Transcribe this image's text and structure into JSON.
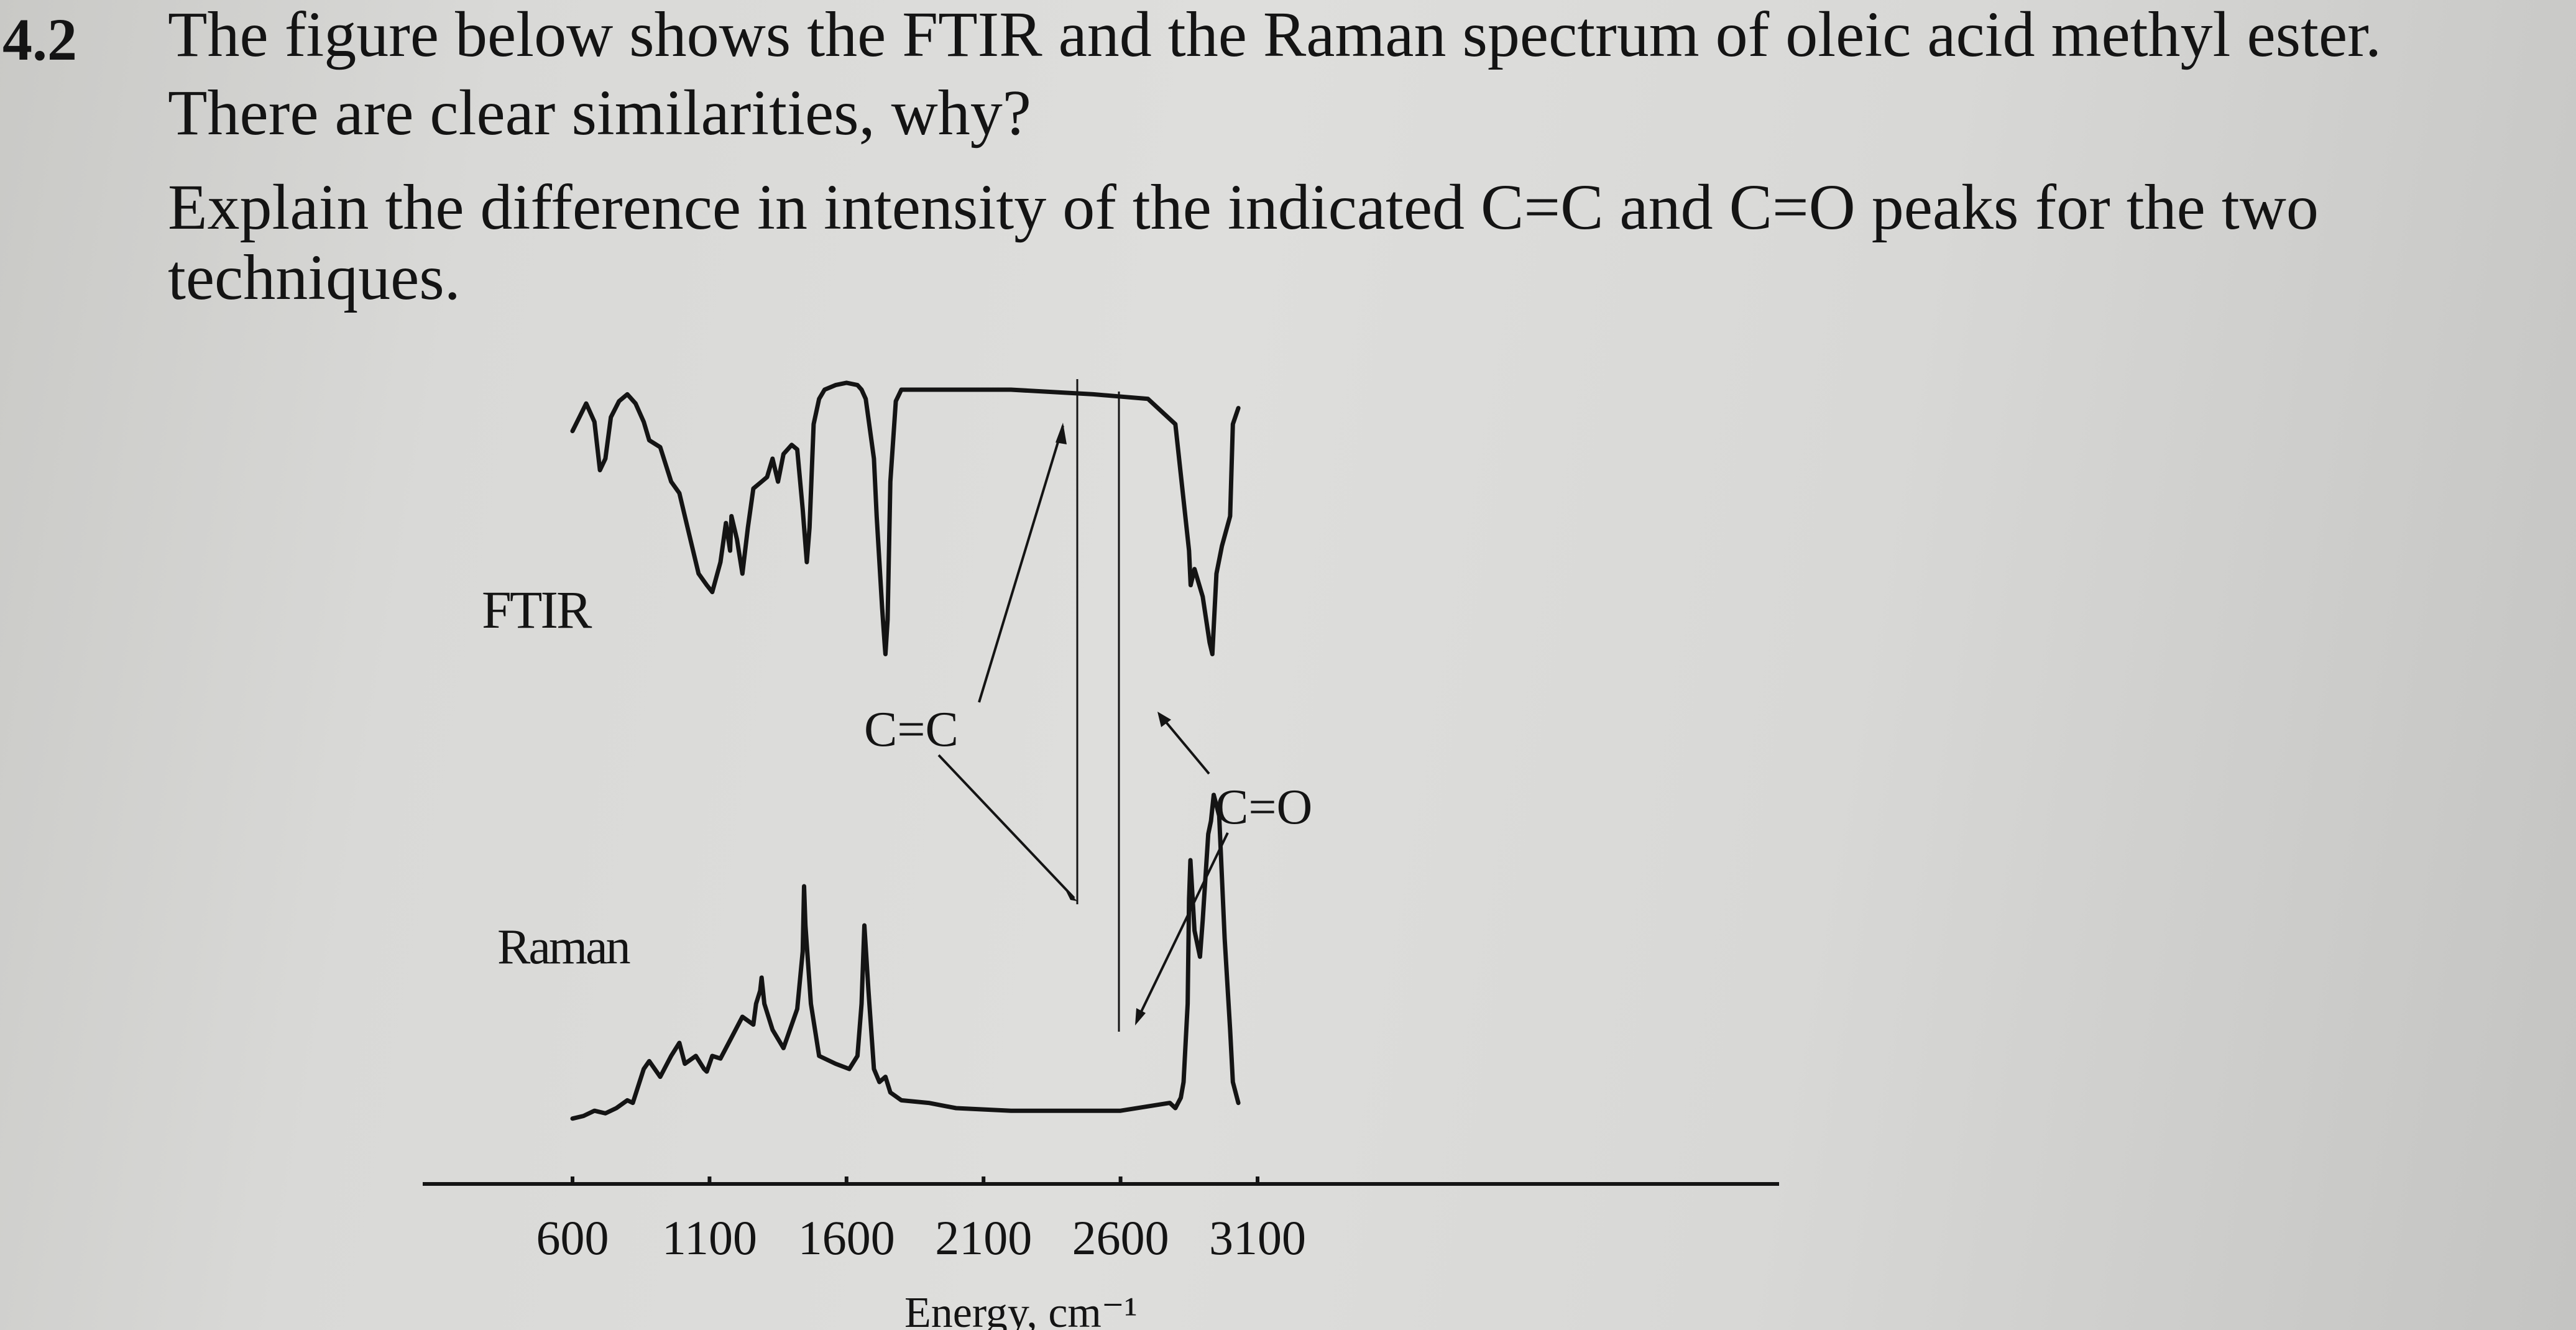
{
  "question": {
    "number": "4.2",
    "lines": [
      "The figure below shows the FTIR and the Raman spectrum of oleic acid methyl ester.",
      "There are clear similarities, why?",
      "Explain the difference in intensity of the indicated C=C and C=O peaks for the two",
      "techniques."
    ]
  },
  "chart_data": {
    "type": "line",
    "x_axis": {
      "label": "Energy, cm⁻¹",
      "range": [
        450,
        3250
      ],
      "ticks": [
        600,
        1100,
        1600,
        2100,
        2600,
        3100
      ],
      "tick_labels": [
        "600",
        "1100",
        "1600",
        "2100",
        "2600",
        "3100"
      ]
    },
    "series": [
      {
        "name": "FTIR",
        "color": "#141414",
        "x": [
          600,
          625,
          650,
          680,
          700,
          720,
          740,
          770,
          800,
          830,
          860,
          880,
          920,
          960,
          990,
          1020,
          1060,
          1090,
          1110,
          1140,
          1160,
          1175,
          1180,
          1200,
          1220,
          1240,
          1260,
          1290,
          1310,
          1330,
          1350,
          1370,
          1400,
          1420,
          1440,
          1455,
          1465,
          1480,
          1500,
          1520,
          1560,
          1600,
          1640,
          1655,
          1670,
          1700,
          1710,
          1730,
          1740,
          1742,
          1750,
          1760,
          1780,
          1800,
          1900,
          2200,
          2500,
          2700,
          2800,
          2850,
          2856,
          2870,
          2900,
          2925,
          2935,
          2950,
          2970,
          3000,
          3005,
          3010,
          3030
        ],
        "y": [
          0.72,
          0.78,
          0.84,
          0.76,
          0.55,
          0.6,
          0.78,
          0.85,
          0.88,
          0.84,
          0.76,
          0.68,
          0.65,
          0.5,
          0.45,
          0.3,
          0.1,
          0.05,
          0.02,
          0.15,
          0.32,
          0.2,
          0.35,
          0.25,
          0.1,
          0.3,
          0.47,
          0.5,
          0.52,
          0.6,
          0.5,
          0.62,
          0.66,
          0.64,
          0.38,
          0.15,
          0.3,
          0.75,
          0.86,
          0.9,
          0.92,
          0.93,
          0.92,
          0.9,
          0.86,
          0.6,
          0.35,
          -0.05,
          -0.22,
          -0.25,
          -0.1,
          0.5,
          0.85,
          0.9,
          0.9,
          0.9,
          0.88,
          0.86,
          0.75,
          0.2,
          0.05,
          0.12,
          0.0,
          -0.2,
          -0.25,
          0.1,
          0.22,
          0.35,
          0.55,
          0.75,
          0.82
        ]
      },
      {
        "name": "Raman",
        "color": "#141414",
        "x": [
          600,
          640,
          680,
          720,
          760,
          800,
          820,
          860,
          880,
          920,
          960,
          990,
          1010,
          1050,
          1080,
          1090,
          1100,
          1110,
          1140,
          1180,
          1220,
          1260,
          1270,
          1285,
          1290,
          1300,
          1330,
          1370,
          1420,
          1440,
          1445,
          1450,
          1470,
          1500,
          1560,
          1610,
          1640,
          1655,
          1665,
          1680,
          1700,
          1720,
          1742,
          1760,
          1800,
          1900,
          2000,
          2200,
          2400,
          2600,
          2780,
          2800,
          2820,
          2830,
          2845,
          2850,
          2855,
          2870,
          2890,
          2900,
          2920,
          2930,
          2940,
          2960,
          2980,
          3000,
          3010,
          3030
        ],
        "y": [
          0.06,
          0.07,
          0.09,
          0.08,
          0.1,
          0.13,
          0.12,
          0.25,
          0.28,
          0.22,
          0.3,
          0.35,
          0.27,
          0.3,
          0.25,
          0.24,
          0.27,
          0.3,
          0.29,
          0.37,
          0.45,
          0.42,
          0.5,
          0.55,
          0.6,
          0.5,
          0.4,
          0.33,
          0.48,
          0.7,
          0.95,
          0.8,
          0.5,
          0.3,
          0.27,
          0.25,
          0.3,
          0.5,
          0.8,
          0.55,
          0.25,
          0.2,
          0.22,
          0.16,
          0.13,
          0.12,
          0.1,
          0.09,
          0.09,
          0.09,
          0.12,
          0.1,
          0.14,
          0.2,
          0.5,
          0.9,
          1.05,
          0.78,
          0.68,
          0.82,
          1.15,
          1.2,
          1.3,
          1.22,
          0.75,
          0.4,
          0.2,
          0.12
        ]
      }
    ],
    "annotations": [
      {
        "text": "C=C",
        "points_to": [
          "FTIR peak near 1655 cm⁻¹",
          "Raman peak near 1655 cm⁻¹"
        ]
      },
      {
        "text": "C=O",
        "points_to": [
          "FTIR peak near 1742 cm⁻¹",
          "Raman peak near 1742 cm⁻¹"
        ]
      }
    ]
  }
}
